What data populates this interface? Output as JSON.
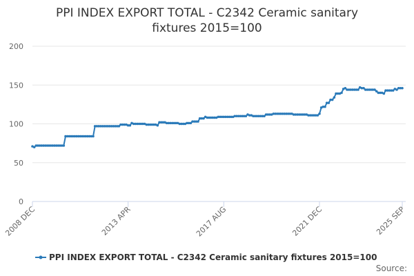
{
  "chart_data": {
    "type": "line",
    "title": "PPI INDEX EXPORT TOTAL - C2342 Ceramic sanitary fixtures 2015=100",
    "source": "Source:",
    "categories": [
      "2008 DEC",
      null,
      null,
      null,
      null,
      null,
      null,
      null,
      null,
      null,
      null,
      null,
      null,
      null,
      null,
      null,
      null,
      null,
      null,
      null,
      null,
      null,
      null,
      null,
      null,
      null,
      null,
      null,
      null,
      null,
      null,
      null,
      null,
      null,
      null,
      null,
      null,
      null,
      null,
      null,
      null,
      null,
      null,
      null,
      null,
      null,
      null,
      null,
      null,
      null,
      null,
      null,
      "2013 APR",
      null,
      null,
      null,
      null,
      null,
      null,
      null,
      null,
      null,
      null,
      null,
      null,
      null,
      null,
      null,
      null,
      null,
      null,
      null,
      null,
      null,
      null,
      null,
      null,
      null,
      null,
      null,
      null,
      null,
      null,
      null,
      null,
      null,
      null,
      null,
      null,
      null,
      null,
      null,
      null,
      null,
      null,
      null,
      null,
      null,
      null,
      null,
      null,
      null,
      null,
      null,
      "2017 AUG",
      null,
      null,
      null,
      null,
      null,
      null,
      null,
      null,
      null,
      null,
      null,
      null,
      null,
      null,
      null,
      null,
      null,
      null,
      null,
      null,
      null,
      null,
      null,
      null,
      null,
      null,
      null,
      null,
      null,
      null,
      null,
      null,
      null,
      null,
      null,
      null,
      null,
      null,
      null,
      null,
      null,
      null,
      null,
      null,
      null,
      null,
      null,
      null,
      null,
      null,
      null,
      "2021 DEC",
      null,
      null,
      null,
      null,
      null,
      null,
      null,
      null,
      null,
      null,
      null,
      null,
      null,
      null,
      null,
      null,
      null,
      null,
      null,
      null,
      null,
      null,
      null,
      null,
      null,
      null,
      null,
      null,
      null,
      null,
      null,
      null,
      null,
      null,
      null,
      null,
      null,
      null,
      null,
      null,
      null,
      null,
      null,
      null,
      "2025 SEP"
    ],
    "series": [
      {
        "name": "PPI INDEX EXPORT TOTAL - C2342 Ceramic sanitary fixtures 2015=100",
        "color": "#2a7ab9",
        "values": [
          71,
          70,
          72,
          72,
          72,
          72,
          72,
          72,
          72,
          72,
          72,
          72,
          72,
          72,
          72,
          72,
          72,
          72,
          84,
          84,
          84,
          84,
          84,
          84,
          84,
          84,
          84,
          84,
          84,
          84,
          84,
          84,
          84,
          84,
          97,
          97,
          97,
          97,
          97,
          97,
          97,
          97,
          97,
          97,
          97,
          97,
          97,
          97,
          99,
          99,
          99,
          99,
          98,
          98,
          101,
          100,
          100,
          100,
          100,
          100,
          100,
          100,
          99,
          99,
          99,
          99,
          99,
          99,
          98,
          102,
          102,
          102,
          102,
          101,
          101,
          101,
          101,
          101,
          101,
          101,
          100,
          100,
          100,
          100,
          101,
          101,
          101,
          103,
          103,
          103,
          103,
          107,
          107,
          107,
          109,
          108,
          108,
          108,
          108,
          108,
          108,
          109,
          109,
          109,
          109,
          109,
          109,
          109,
          109,
          109,
          110,
          110,
          110,
          110,
          110,
          110,
          110,
          112,
          111,
          111,
          110,
          110,
          110,
          110,
          110,
          110,
          110,
          112,
          112,
          112,
          112,
          113,
          113,
          113,
          113,
          113,
          113,
          113,
          113,
          113,
          113,
          113,
          112,
          112,
          112,
          112,
          112,
          112,
          112,
          112,
          111,
          111,
          111,
          111,
          111,
          111,
          113,
          121,
          122,
          122,
          127,
          127,
          131,
          131,
          134,
          139,
          139,
          139,
          140,
          145,
          146,
          144,
          144,
          144,
          144,
          144,
          144,
          144,
          147,
          146,
          146,
          144,
          144,
          144,
          144,
          144,
          144,
          142,
          140,
          140,
          140,
          139,
          143,
          143,
          143,
          143,
          143,
          145,
          144,
          146,
          146,
          146
        ]
      }
    ],
    "ylim": [
      0,
      200
    ],
    "yticks": [
      0,
      50,
      100,
      150,
      200
    ],
    "grid": true,
    "legend": "bottom"
  }
}
